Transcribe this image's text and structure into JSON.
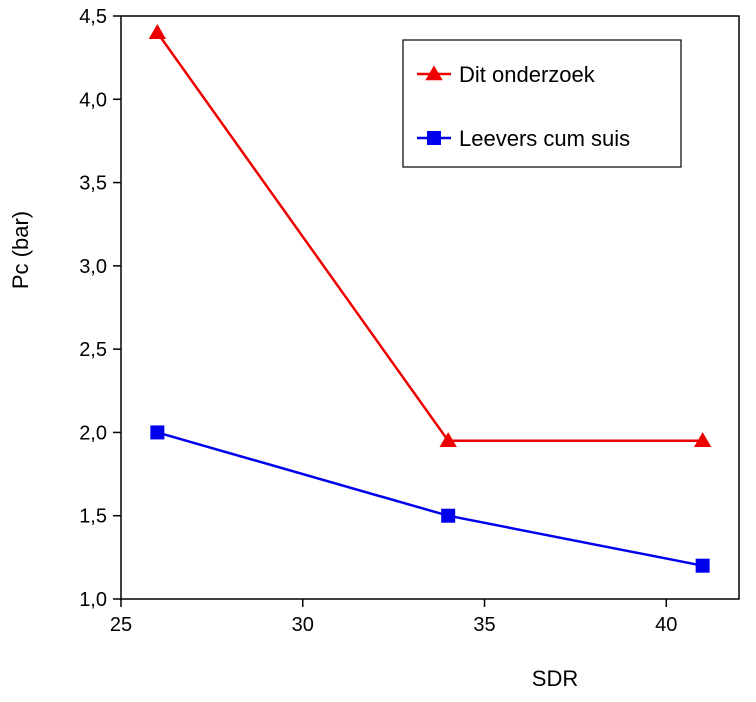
{
  "chart_data": {
    "type": "line",
    "title": "",
    "xlabel": "SDR",
    "ylabel": "Pc (bar)",
    "xlim": [
      25,
      42
    ],
    "ylim": [
      1.0,
      4.5
    ],
    "x_ticks": [
      25,
      30,
      35,
      40
    ],
    "x_tick_labels": [
      "25",
      "30",
      "35",
      "40"
    ],
    "y_ticks": [
      1.0,
      1.5,
      2.0,
      2.5,
      3.0,
      3.5,
      4.0,
      4.5
    ],
    "y_tick_labels": [
      "1,0",
      "1,5",
      "2,0",
      "2,5",
      "3,0",
      "3,5",
      "4,0",
      "4,5"
    ],
    "grid": false,
    "legend_position": "top-right",
    "series": [
      {
        "name": "Dit onderzoek",
        "color": "#ee0000",
        "marker": "triangle",
        "x": [
          26,
          34,
          41
        ],
        "y": [
          4.4,
          1.95,
          1.95
        ]
      },
      {
        "name": "Leevers cum suis",
        "color": "#0000ee",
        "marker": "square",
        "x": [
          26,
          34,
          41
        ],
        "y": [
          2.0,
          1.5,
          1.2
        ]
      }
    ]
  }
}
